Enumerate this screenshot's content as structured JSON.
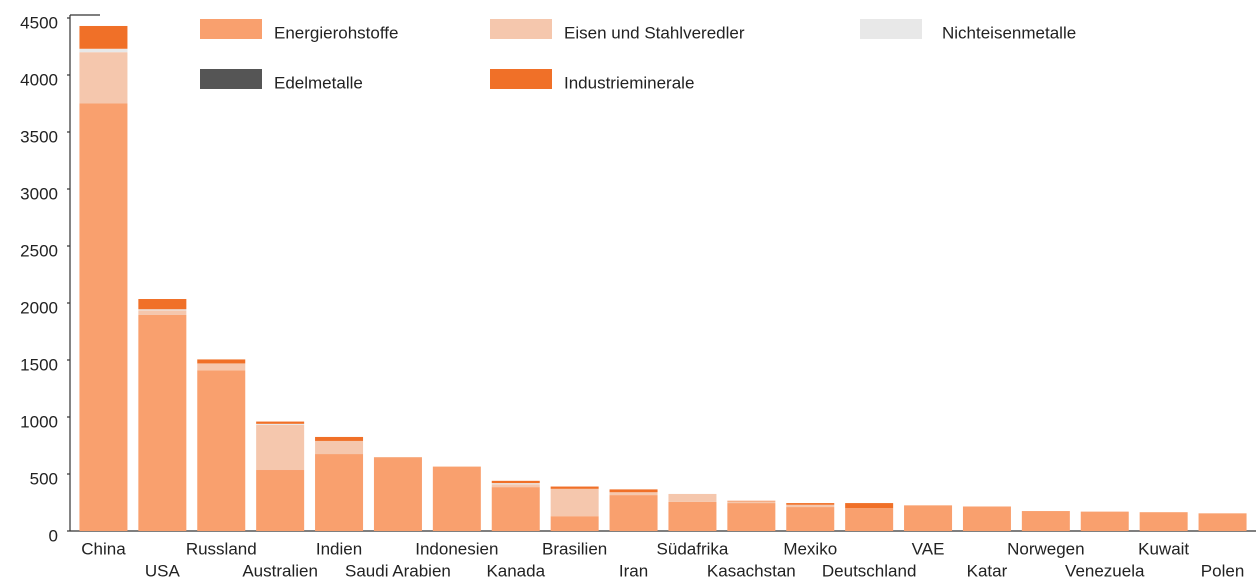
{
  "chart_data": {
    "type": "stacked_bar",
    "categories": [
      "China",
      "USA",
      "Russland",
      "Australien",
      "Indien",
      "Saudi Arabien",
      "Indonesien",
      "Kanada",
      "Brasilien",
      "Iran",
      "Südafrika",
      "Kasachstan",
      "Mexiko",
      "Deutschland",
      "VAE",
      "Katar",
      "Norwegen",
      "Venezuela",
      "Kuwait",
      "Polen"
    ],
    "series": [
      {
        "name": "Energierohstoffe",
        "color": "#f9a06e",
        "values": [
          3750,
          1895,
          1410,
          535,
          675,
          640,
          565,
          385,
          130,
          315,
          255,
          245,
          210,
          200,
          225,
          215,
          175,
          170,
          165,
          155
        ]
      },
      {
        "name": "Eisen und Stahlveredler",
        "color": "#f5c7ad",
        "values": [
          450,
          40,
          60,
          395,
          115,
          0,
          0,
          25,
          240,
          25,
          70,
          15,
          20,
          0,
          0,
          0,
          0,
          0,
          0,
          0
        ]
      },
      {
        "name": "Nichteisenmetalle",
        "color": "#e8e8e8",
        "values": [
          30,
          10,
          0,
          10,
          0,
          0,
          0,
          10,
          0,
          0,
          0,
          0,
          0,
          0,
          0,
          0,
          0,
          0,
          0,
          0
        ]
      },
      {
        "name": "Edelmetalle",
        "color": "#555555",
        "values": [
          0,
          0,
          0,
          0,
          0,
          0,
          0,
          0,
          0,
          0,
          0,
          0,
          0,
          0,
          0,
          0,
          0,
          0,
          0,
          0
        ]
      },
      {
        "name": "Industrieminerale",
        "color": "#f07028",
        "values": [
          200,
          90,
          35,
          20,
          35,
          5,
          0,
          20,
          20,
          25,
          0,
          5,
          15,
          45,
          0,
          0,
          0,
          0,
          0,
          0
        ]
      }
    ],
    "ylim": [
      0,
      4500
    ],
    "yticks": [
      0,
      500,
      1000,
      1500,
      2000,
      2500,
      3000,
      3500,
      4000,
      4500
    ],
    "grid": false
  }
}
